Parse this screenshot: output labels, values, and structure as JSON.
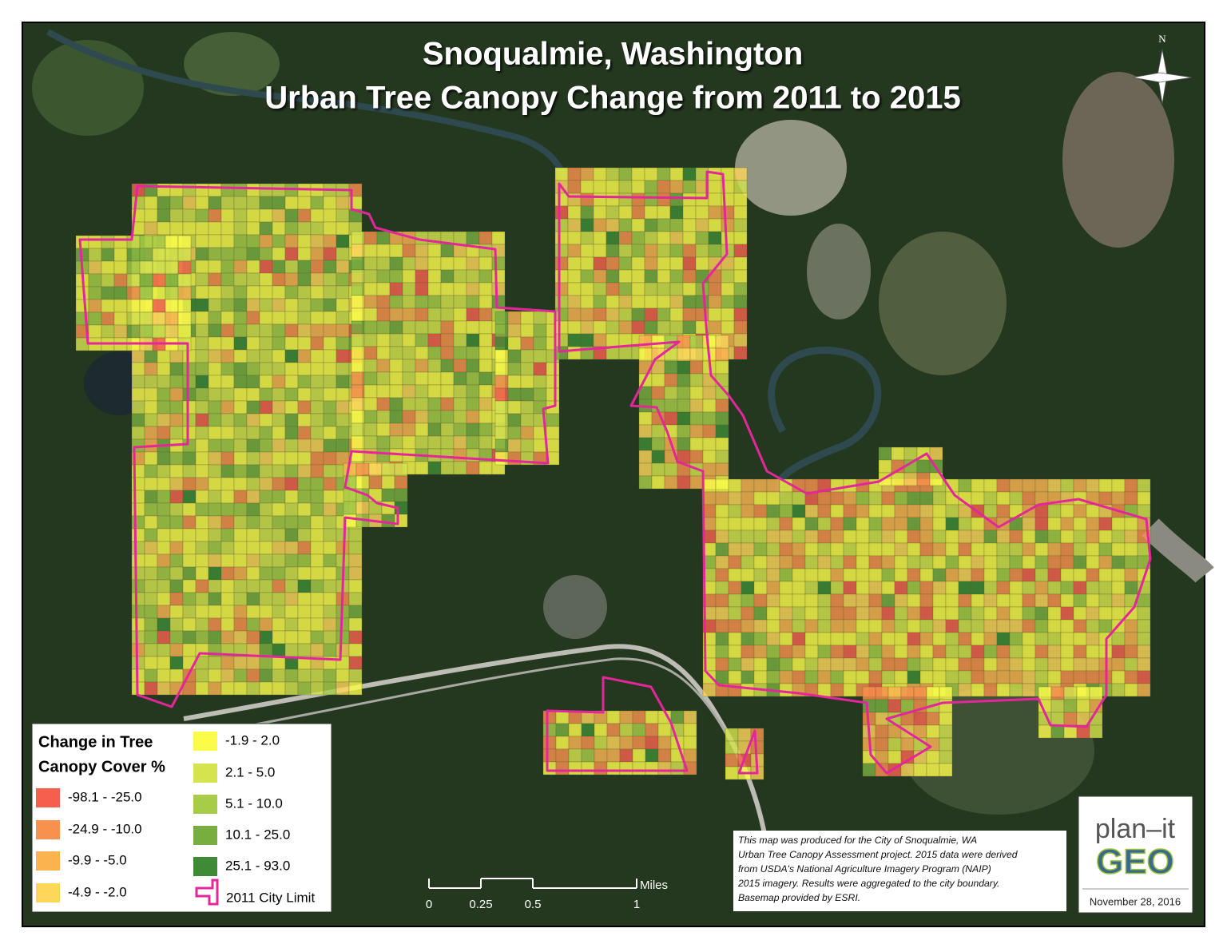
{
  "title": {
    "line1": "Snoqualmie, Washington",
    "line2": "Urban Tree Canopy Change from 2011 to 2015"
  },
  "north_label": "N",
  "legend": {
    "title_lines": [
      "Change in Tree",
      "Canopy Cover %"
    ],
    "items": [
      {
        "label": "-98.1 - -25.0",
        "color": "#f4604d"
      },
      {
        "label": "-24.9 - -10.0",
        "color": "#f8914d"
      },
      {
        "label": "-9.9 - -5.0",
        "color": "#fbb350"
      },
      {
        "label": "-4.9 - -2.0",
        "color": "#fdd65a"
      },
      {
        "label": "-1.9 - 2.0",
        "color": "#fbfb4a"
      },
      {
        "label": "2.1 - 5.0",
        "color": "#d4e34e"
      },
      {
        "label": "5.1 - 10.0",
        "color": "#a7cc48"
      },
      {
        "label": "10.1 - 25.0",
        "color": "#78ad3f"
      },
      {
        "label": "25.1 - 93.0",
        "color": "#3e8a35"
      }
    ],
    "boundary": {
      "label": "2011 City Limit",
      "color": "#e3279b"
    }
  },
  "scale_bar": {
    "unit": "Miles",
    "ticks": [
      0,
      0.25,
      0.5,
      1
    ]
  },
  "note": [
    "This map was produced for the City of Snoqualmie, WA",
    "Urban Tree Canopy Assessment project. 2015 data were derived",
    "from USDA's National Agriculture Imagery Program (NAIP)",
    "2015 imagery. Results were aggregated to the city boundary.",
    "Basemap provided by ESRI."
  ],
  "logo": {
    "line1": "plan–it",
    "line2": "GEO",
    "date": "November 28, 2016"
  }
}
